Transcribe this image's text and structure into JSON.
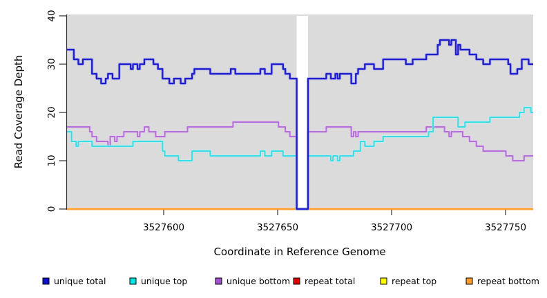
{
  "chart_data": {
    "type": "line",
    "style": "step-after-coverage-plot",
    "xlabel": "Coordinate in Reference Genome",
    "ylabel": "Read Coverage Depth",
    "xlim": [
      3527557,
      3527762
    ],
    "ylim": [
      0,
      40
    ],
    "x_ticks": [
      3527600,
      3527650,
      3527700,
      3527750
    ],
    "x_tick_labels": [
      "3527600",
      "3527650",
      "3527700",
      "3527750"
    ],
    "y_ticks": [
      0,
      10,
      20,
      30,
      40
    ],
    "y_tick_labels": [
      "0",
      "10",
      "20",
      "30",
      "40"
    ],
    "panel_background": "#dbdbdb",
    "gap_region": {
      "start": 3527658,
      "end": 3527663,
      "note": "white band where all coverage drops to 0"
    },
    "grid": false,
    "legend_position": "bottom",
    "series": [
      {
        "name": "unique total",
        "color": "#1d1dcd",
        "halo": "#9a9aec",
        "steps": [
          [
            3527557,
            33
          ],
          [
            3527560,
            31
          ],
          [
            3527562,
            30
          ],
          [
            3527564,
            31
          ],
          [
            3527568,
            28
          ],
          [
            3527570,
            27
          ],
          [
            3527572,
            26
          ],
          [
            3527574,
            27
          ],
          [
            3527575,
            28
          ],
          [
            3527577,
            27
          ],
          [
            3527580,
            30
          ],
          [
            3527585,
            29
          ],
          [
            3527586,
            30
          ],
          [
            3527588,
            29
          ],
          [
            3527589,
            30
          ],
          [
            3527591,
            31
          ],
          [
            3527595,
            30
          ],
          [
            3527597,
            29
          ],
          [
            3527599,
            27
          ],
          [
            3527602,
            26
          ],
          [
            3527604,
            27
          ],
          [
            3527607,
            26
          ],
          [
            3527609,
            27
          ],
          [
            3527612,
            28
          ],
          [
            3527613,
            29
          ],
          [
            3527620,
            28
          ],
          [
            3527629,
            29
          ],
          [
            3527631,
            28
          ],
          [
            3527642,
            29
          ],
          [
            3527644,
            28
          ],
          [
            3527647,
            30
          ],
          [
            3527652,
            29
          ],
          [
            3527653,
            28
          ],
          [
            3527655,
            27
          ],
          [
            3527658,
            0
          ],
          [
            3527663,
            27
          ],
          [
            3527671,
            28
          ],
          [
            3527673,
            27
          ],
          [
            3527675,
            28
          ],
          [
            3527676,
            27
          ],
          [
            3527677,
            28
          ],
          [
            3527682,
            26
          ],
          [
            3527684,
            28
          ],
          [
            3527685,
            29
          ],
          [
            3527688,
            30
          ],
          [
            3527692,
            29
          ],
          [
            3527696,
            31
          ],
          [
            3527706,
            30
          ],
          [
            3527709,
            31
          ],
          [
            3527715,
            32
          ],
          [
            3527720,
            34
          ],
          [
            3527721,
            35
          ],
          [
            3527725,
            34
          ],
          [
            3527726,
            35
          ],
          [
            3527728,
            32
          ],
          [
            3527729,
            34
          ],
          [
            3527730,
            33
          ],
          [
            3527734,
            32
          ],
          [
            3527737,
            31
          ],
          [
            3527740,
            30
          ],
          [
            3527743,
            31
          ],
          [
            3527751,
            30
          ],
          [
            3527752,
            28
          ],
          [
            3527755,
            29
          ],
          [
            3527757,
            31
          ],
          [
            3527760,
            30
          ]
        ]
      },
      {
        "name": "unique top",
        "color": "#3adde3",
        "halo": "#b8f3f5",
        "steps": [
          [
            3527557,
            16
          ],
          [
            3527559,
            14
          ],
          [
            3527561,
            13
          ],
          [
            3527562,
            14
          ],
          [
            3527568,
            13
          ],
          [
            3527586,
            14
          ],
          [
            3527599,
            12
          ],
          [
            3527600,
            11
          ],
          [
            3527606,
            10
          ],
          [
            3527612,
            12
          ],
          [
            3527620,
            11
          ],
          [
            3527642,
            12
          ],
          [
            3527644,
            11
          ],
          [
            3527647,
            12
          ],
          [
            3527652,
            11
          ],
          [
            3527658,
            0
          ],
          [
            3527663,
            11
          ],
          [
            3527673,
            10
          ],
          [
            3527674,
            11
          ],
          [
            3527676,
            10
          ],
          [
            3527677,
            11
          ],
          [
            3527683,
            12
          ],
          [
            3527686,
            14
          ],
          [
            3527688,
            13
          ],
          [
            3527692,
            14
          ],
          [
            3527696,
            15
          ],
          [
            3527716,
            16
          ],
          [
            3527718,
            19
          ],
          [
            3527729,
            17
          ],
          [
            3527732,
            18
          ],
          [
            3527743,
            19
          ],
          [
            3527756,
            20
          ],
          [
            3527758,
            21
          ],
          [
            3527761,
            20
          ]
        ]
      },
      {
        "name": "unique bottom",
        "color": "#b46fd8",
        "halo": "#e2c6f2",
        "steps": [
          [
            3527557,
            17
          ],
          [
            3527567,
            16
          ],
          [
            3527568,
            15
          ],
          [
            3527570,
            14
          ],
          [
            3527575,
            13
          ],
          [
            3527576,
            15
          ],
          [
            3527578,
            14
          ],
          [
            3527579,
            15
          ],
          [
            3527582,
            16
          ],
          [
            3527588,
            15
          ],
          [
            3527589,
            16
          ],
          [
            3527591,
            17
          ],
          [
            3527593,
            16
          ],
          [
            3527596,
            15
          ],
          [
            3527600,
            16
          ],
          [
            3527610,
            17
          ],
          [
            3527630,
            18
          ],
          [
            3527650,
            17
          ],
          [
            3527653,
            16
          ],
          [
            3527655,
            15
          ],
          [
            3527658,
            0
          ],
          [
            3527663,
            16
          ],
          [
            3527671,
            17
          ],
          [
            3527682,
            15
          ],
          [
            3527683,
            16
          ],
          [
            3527684,
            15
          ],
          [
            3527685,
            16
          ],
          [
            3527715,
            17
          ],
          [
            3527723,
            16
          ],
          [
            3527725,
            15
          ],
          [
            3527726,
            16
          ],
          [
            3527731,
            15
          ],
          [
            3527734,
            14
          ],
          [
            3527737,
            13
          ],
          [
            3527740,
            12
          ],
          [
            3527750,
            11
          ],
          [
            3527753,
            10
          ],
          [
            3527758,
            11
          ]
        ]
      },
      {
        "name": "repeat total",
        "color": "#dd0000",
        "halo": "#f0a0a0",
        "steps": [
          [
            3527557,
            0
          ]
        ]
      },
      {
        "name": "repeat top",
        "color": "#ffff00",
        "halo": "#ffffb0",
        "steps": [
          [
            3527557,
            0
          ]
        ]
      },
      {
        "name": "repeat bottom",
        "color": "#ff9e2e",
        "halo": "#ffd9a6",
        "steps": [
          [
            3527557,
            0
          ]
        ]
      }
    ],
    "legend": [
      {
        "label": "unique total",
        "swatch": "#0f0fcf"
      },
      {
        "label": "unique top",
        "swatch": "#00e5e5"
      },
      {
        "label": "unique bottom",
        "swatch": "#a24fd3"
      },
      {
        "label": "repeat total",
        "swatch": "#dd0000"
      },
      {
        "label": "repeat top",
        "swatch": "#ffff00"
      },
      {
        "label": "repeat bottom",
        "swatch": "#ff9e2e"
      }
    ]
  }
}
